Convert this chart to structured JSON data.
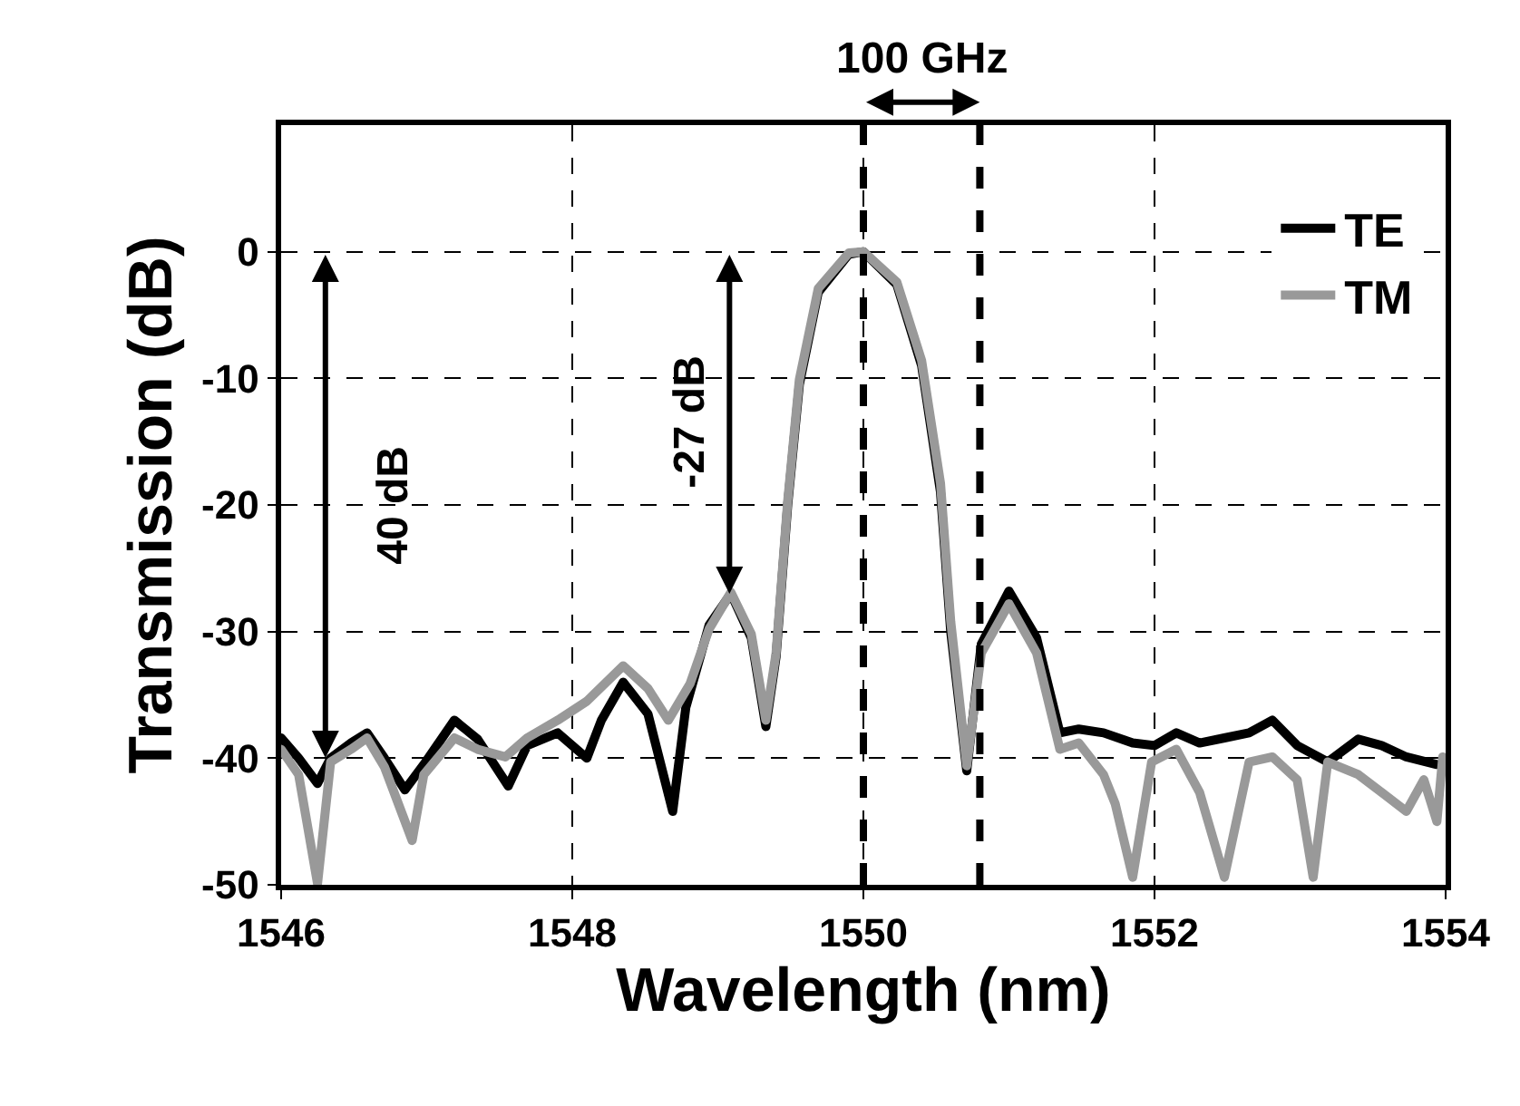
{
  "chart_data": {
    "type": "line",
    "xlabel": "Wavelength (nm)",
    "ylabel": "Transmission (dB)",
    "xlim": [
      1546,
      1554
    ],
    "xticks": [
      1546,
      1548,
      1550,
      1552,
      1554
    ],
    "ylim": [
      -50,
      10
    ],
    "yticks": [
      0,
      -10,
      -20,
      -30,
      -40,
      -50
    ],
    "grid": true,
    "legend": "top right",
    "marker": "none",
    "line_style": "solid",
    "series": [
      {
        "name": "TE",
        "color": "#000000",
        "x": [
          1546.0,
          1546.12,
          1546.25,
          1546.34,
          1546.48,
          1546.59,
          1546.71,
          1546.85,
          1546.98,
          1547.19,
          1547.35,
          1547.56,
          1547.69,
          1547.9,
          1548.1,
          1548.2,
          1548.35,
          1548.52,
          1548.69,
          1548.78,
          1548.94,
          1549.09,
          1549.23,
          1549.33,
          1549.4,
          1549.48,
          1549.56,
          1549.69,
          1549.9,
          1550.0,
          1550.23,
          1550.4,
          1550.53,
          1550.6,
          1550.71,
          1550.81,
          1551.0,
          1551.19,
          1551.35,
          1551.48,
          1551.65,
          1551.85,
          1552.0,
          1552.15,
          1552.31,
          1552.48,
          1552.65,
          1552.81,
          1552.98,
          1553.19,
          1553.4,
          1553.56,
          1553.73,
          1553.94
        ],
        "values": [
          -38.4,
          -40.0,
          -42.0,
          -40.0,
          -38.8,
          -38.0,
          -40.0,
          -42.5,
          -40.5,
          -37.0,
          -38.5,
          -42.2,
          -39.0,
          -38.0,
          -40.0,
          -37.0,
          -34.0,
          -36.5,
          -44.2,
          -36.0,
          -29.5,
          -27.0,
          -30.5,
          -37.5,
          -32.0,
          -20.0,
          -10.5,
          -3.2,
          -0.2,
          0,
          -2.6,
          -9.0,
          -19.0,
          -30.0,
          -41.0,
          -31.0,
          -26.8,
          -30.5,
          -38.0,
          -37.7,
          -38.0,
          -38.8,
          -39.0,
          -38.0,
          -38.8,
          -38.4,
          -38.0,
          -37.0,
          -39.0,
          -40.3,
          -38.5,
          -39.0,
          -39.9,
          -40.5
        ]
      },
      {
        "name": "TM",
        "color": "#999999",
        "x": [
          1546.0,
          1546.12,
          1546.25,
          1546.34,
          1546.48,
          1546.59,
          1546.71,
          1546.9,
          1546.98,
          1547.19,
          1547.35,
          1547.54,
          1547.69,
          1547.9,
          1548.1,
          1548.35,
          1548.52,
          1548.66,
          1548.81,
          1548.94,
          1549.09,
          1549.23,
          1549.33,
          1549.4,
          1549.48,
          1549.56,
          1549.69,
          1549.9,
          1550.0,
          1550.23,
          1550.4,
          1550.53,
          1550.6,
          1550.71,
          1550.81,
          1551.0,
          1551.19,
          1551.35,
          1551.48,
          1551.65,
          1551.73,
          1551.85,
          1551.98,
          1552.15,
          1552.31,
          1552.48,
          1552.65,
          1552.81,
          1552.98,
          1553.09,
          1553.19,
          1553.4,
          1553.56,
          1553.73,
          1553.85,
          1553.94,
          1553.98
        ],
        "values": [
          -39.3,
          -41.3,
          -49.9,
          -40.3,
          -39.3,
          -38.4,
          -40.7,
          -46.5,
          -41.3,
          -38.4,
          -39.3,
          -39.9,
          -38.4,
          -37.0,
          -35.5,
          -32.7,
          -34.5,
          -37.0,
          -34.1,
          -29.8,
          -26.9,
          -30.2,
          -37.0,
          -31.7,
          -19.7,
          -10.1,
          -2.9,
          -0.1,
          0,
          -2.4,
          -8.6,
          -18.3,
          -29.2,
          -40.6,
          -31.7,
          -27.8,
          -31.7,
          -39.3,
          -38.8,
          -41.3,
          -43.6,
          -49.4,
          -40.3,
          -39.3,
          -42.7,
          -49.4,
          -40.3,
          -39.9,
          -41.7,
          -49.4,
          -40.3,
          -41.3,
          -42.7,
          -44.2,
          -41.7,
          -45.0,
          -39.9
        ]
      }
    ],
    "ref_lines": [
      {
        "axis": "x",
        "value": 1550,
        "color": "#000000",
        "line_style": "dashed"
      },
      {
        "axis": "x",
        "value": 1550.8,
        "color": "#000000",
        "line_style": "dashed"
      }
    ],
    "annotations": [
      "100 GHz",
      "40 dB",
      "-27 dB"
    ]
  }
}
